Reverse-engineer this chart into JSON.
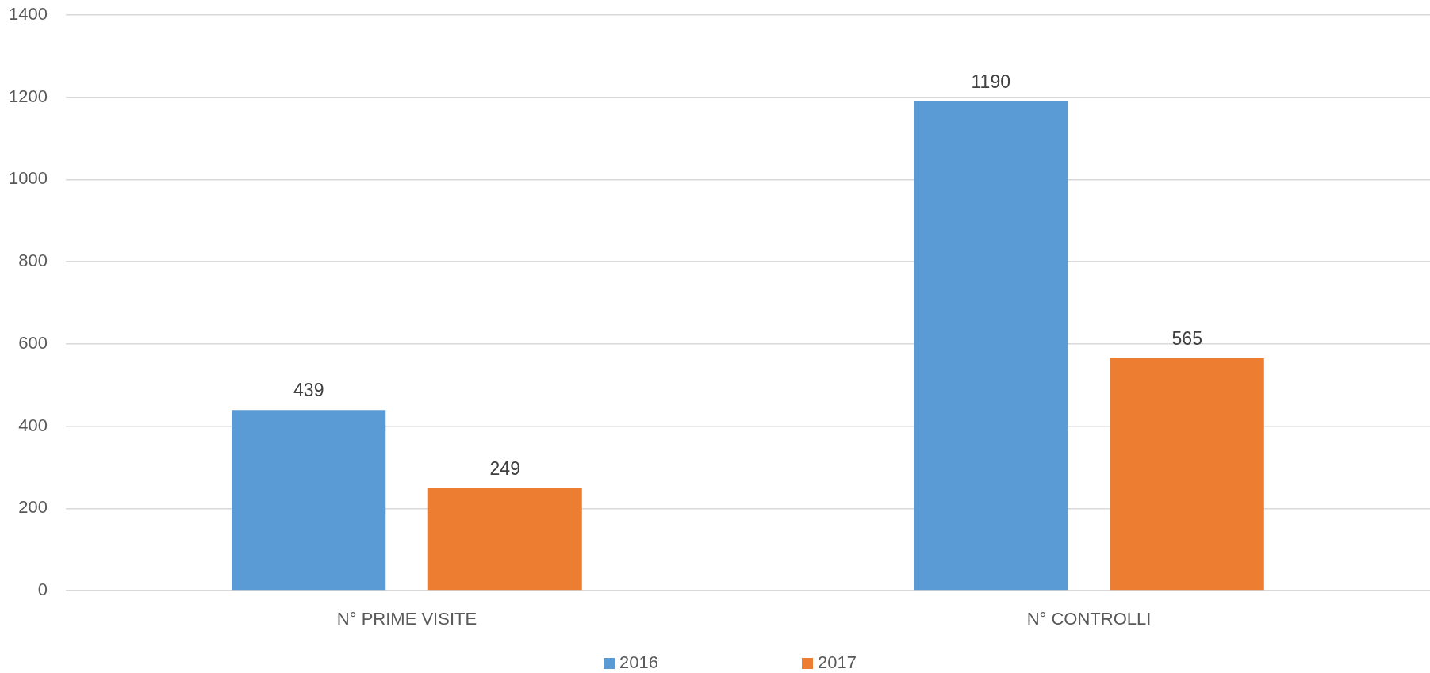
{
  "chart_data": {
    "type": "bar",
    "categories": [
      "N° PRIME VISITE",
      "N° CONTROLLI"
    ],
    "series": [
      {
        "name": "2016",
        "color": "#5b9bd5",
        "values": [
          439,
          1190
        ]
      },
      {
        "name": "2017",
        "color": "#ed7d31",
        "values": [
          249,
          565
        ]
      }
    ],
    "ylim": [
      0,
      1400
    ],
    "yticks": [
      0,
      200,
      400,
      600,
      800,
      1000,
      1200,
      1400
    ],
    "grid": "y",
    "legend": "bottom",
    "data_labels": true
  }
}
